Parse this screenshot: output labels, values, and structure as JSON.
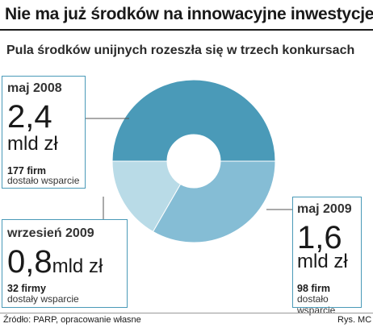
{
  "title": "Nie ma już środków na innowacyjne inwestycje",
  "subtitle": "Pula środków unijnych rozeszła się w trzech konkursach",
  "boxes": {
    "may2008": {
      "date": "maj 2008",
      "value": "2,4",
      "unit": "mld zł",
      "firms": "177 firm",
      "support": "dostało wsparcie"
    },
    "may2009": {
      "date": "maj 2009",
      "value": "1,6",
      "unit": "mld zł",
      "firms": "98 firm",
      "support": "dostało wsparcie"
    },
    "sep2009": {
      "date": "wrzesień 2009",
      "value": "0,8",
      "unit": "mld zł",
      "firms": "32  firmy",
      "support": "dostały wsparcie"
    }
  },
  "footer": {
    "source": "Źródło: PARP, opracowanie własne",
    "credit": "Rys. MC"
  },
  "chart_data": {
    "type": "pie",
    "donut": true,
    "categories": [
      "maj 2008",
      "maj 2009",
      "wrzesień 2009"
    ],
    "values": [
      2.4,
      1.6,
      0.8
    ],
    "colors": [
      "#4a9ab8",
      "#85bdd5",
      "#b9dbe7"
    ],
    "title": "Pula środków unijnych rozeszła się w trzech konkursach"
  }
}
